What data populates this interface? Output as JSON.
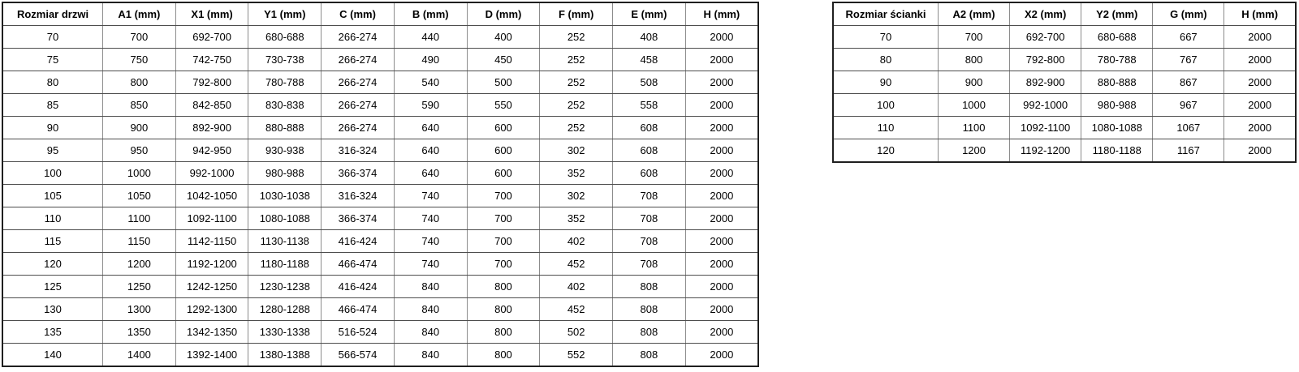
{
  "page": {
    "background": "#ffffff",
    "text_color": "#000000",
    "border_outer_color": "#1f1f1f",
    "border_inner_horizontal_color": "#4d4d4d",
    "border_inner_vertical_color": "#8c8c8c"
  },
  "doors_table": {
    "title": "door-sizes-table",
    "headers": [
      "Rozmiar drzwi",
      "A1 (mm)",
      "X1 (mm)",
      "Y1 (mm)",
      "C (mm)",
      "B (mm)",
      "D (mm)",
      "F (mm)",
      "E (mm)",
      "H (mm)"
    ],
    "rows": [
      [
        "70",
        "700",
        "692-700",
        "680-688",
        "266-274",
        "440",
        "400",
        "252",
        "408",
        "2000"
      ],
      [
        "75",
        "750",
        "742-750",
        "730-738",
        "266-274",
        "490",
        "450",
        "252",
        "458",
        "2000"
      ],
      [
        "80",
        "800",
        "792-800",
        "780-788",
        "266-274",
        "540",
        "500",
        "252",
        "508",
        "2000"
      ],
      [
        "85",
        "850",
        "842-850",
        "830-838",
        "266-274",
        "590",
        "550",
        "252",
        "558",
        "2000"
      ],
      [
        "90",
        "900",
        "892-900",
        "880-888",
        "266-274",
        "640",
        "600",
        "252",
        "608",
        "2000"
      ],
      [
        "95",
        "950",
        "942-950",
        "930-938",
        "316-324",
        "640",
        "600",
        "302",
        "608",
        "2000"
      ],
      [
        "100",
        "1000",
        "992-1000",
        "980-988",
        "366-374",
        "640",
        "600",
        "352",
        "608",
        "2000"
      ],
      [
        "105",
        "1050",
        "1042-1050",
        "1030-1038",
        "316-324",
        "740",
        "700",
        "302",
        "708",
        "2000"
      ],
      [
        "110",
        "1100",
        "1092-1100",
        "1080-1088",
        "366-374",
        "740",
        "700",
        "352",
        "708",
        "2000"
      ],
      [
        "115",
        "1150",
        "1142-1150",
        "1130-1138",
        "416-424",
        "740",
        "700",
        "402",
        "708",
        "2000"
      ],
      [
        "120",
        "1200",
        "1192-1200",
        "1180-1188",
        "466-474",
        "740",
        "700",
        "452",
        "708",
        "2000"
      ],
      [
        "125",
        "1250",
        "1242-1250",
        "1230-1238",
        "416-424",
        "840",
        "800",
        "402",
        "808",
        "2000"
      ],
      [
        "130",
        "1300",
        "1292-1300",
        "1280-1288",
        "466-474",
        "840",
        "800",
        "452",
        "808",
        "2000"
      ],
      [
        "135",
        "1350",
        "1342-1350",
        "1330-1338",
        "516-524",
        "840",
        "800",
        "502",
        "808",
        "2000"
      ],
      [
        "140",
        "1400",
        "1392-1400",
        "1380-1388",
        "566-574",
        "840",
        "800",
        "552",
        "808",
        "2000"
      ]
    ]
  },
  "walls_table": {
    "title": "wall-panel-sizes-table",
    "headers": [
      "Rozmiar ścianki",
      "A2 (mm)",
      "X2 (mm)",
      "Y2 (mm)",
      "G (mm)",
      "H (mm)"
    ],
    "rows": [
      [
        "70",
        "700",
        "692-700",
        "680-688",
        "667",
        "2000"
      ],
      [
        "80",
        "800",
        "792-800",
        "780-788",
        "767",
        "2000"
      ],
      [
        "90",
        "900",
        "892-900",
        "880-888",
        "867",
        "2000"
      ],
      [
        "100",
        "1000",
        "992-1000",
        "980-988",
        "967",
        "2000"
      ],
      [
        "110",
        "1100",
        "1092-1100",
        "1080-1088",
        "1067",
        "2000"
      ],
      [
        "120",
        "1200",
        "1192-1200",
        "1180-1188",
        "1167",
        "2000"
      ]
    ]
  }
}
